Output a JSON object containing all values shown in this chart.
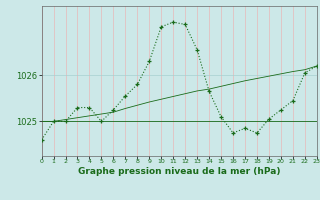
{
  "title": "Graphe pression niveau de la mer (hPa)",
  "bg_color": "#cce8e8",
  "plot_bg_color": "#cce8e8",
  "line_color": "#1a6b1a",
  "grid_color_v": "#e8b8b8",
  "grid_color_h": "#a8d0d0",
  "x_ticks": [
    0,
    1,
    2,
    3,
    4,
    5,
    6,
    7,
    8,
    9,
    10,
    11,
    12,
    13,
    14,
    15,
    16,
    17,
    18,
    19,
    20,
    21,
    22,
    23
  ],
  "y_ticks": [
    1025,
    1026
  ],
  "ylim": [
    1024.25,
    1027.5
  ],
  "xlim": [
    0,
    23
  ],
  "series1": [
    1024.6,
    1025.0,
    1025.0,
    1025.3,
    1025.3,
    1025.0,
    1025.25,
    1025.55,
    1025.8,
    1026.3,
    1027.05,
    1027.15,
    1027.1,
    1026.55,
    1025.65,
    1025.1,
    1024.75,
    1024.85,
    1024.75,
    1025.05,
    1025.25,
    1025.45,
    1026.05,
    1026.2
  ],
  "series2": [
    1025.0,
    1025.0,
    1025.04,
    1025.08,
    1025.12,
    1025.16,
    1025.2,
    1025.28,
    1025.35,
    1025.42,
    1025.48,
    1025.54,
    1025.6,
    1025.66,
    1025.7,
    1025.76,
    1025.82,
    1025.88,
    1025.93,
    1025.98,
    1026.03,
    1026.08,
    1026.12,
    1026.2
  ],
  "series3_x": [
    0,
    5,
    19,
    23
  ],
  "series3_y": [
    1025.0,
    1025.0,
    1025.0,
    1025.0
  ]
}
